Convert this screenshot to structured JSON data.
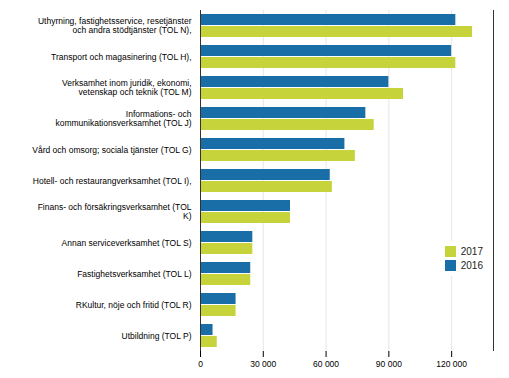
{
  "chart_data": {
    "type": "bar",
    "orientation": "horizontal",
    "categories": [
      "Uthyrning, fastighetsservice, resetjänster\noch andra stödtjänster (TOL N),",
      "Transport och magasinering (TOL H),",
      "Verksamhet inom juridik, ekonomi,\nvetenskap och teknik (TOL M)",
      "Informations- och\nkommunikationsverksamhet (TOL J)",
      "Vård och omsorg; sociala tjänster (TOL G)",
      "Hotell- och restaurangverksamhet (TOL I),",
      "Finans- och försäkringsverksamhet (TOL\nK)",
      "Annan serviceverksamhet (TOL S)",
      "Fastighetsverksamhet (TOL L)",
      "RKultur, nöje och fritid (TOL R)",
      "Utbildning (TOL P)"
    ],
    "series": [
      {
        "name": "2016",
        "color": "#1a6ea8",
        "values": [
          122000,
          120000,
          90000,
          79000,
          69000,
          62000,
          43000,
          25000,
          24000,
          17000,
          6000
        ]
      },
      {
        "name": "2017",
        "color": "#c7d33a",
        "values": [
          130000,
          122000,
          97000,
          83000,
          74000,
          63000,
          43000,
          25000,
          24000,
          17000,
          8000
        ]
      }
    ],
    "xlim": [
      0,
      140000
    ],
    "xticks": [
      0,
      {
        "value": 30000,
        "label": "30 000"
      },
      {
        "value": 60000,
        "label": "60 000"
      },
      {
        "value": 90000,
        "label": "90 000"
      },
      {
        "value": 120000,
        "label": "120 000"
      }
    ],
    "grid": true,
    "legend": "lower right"
  }
}
